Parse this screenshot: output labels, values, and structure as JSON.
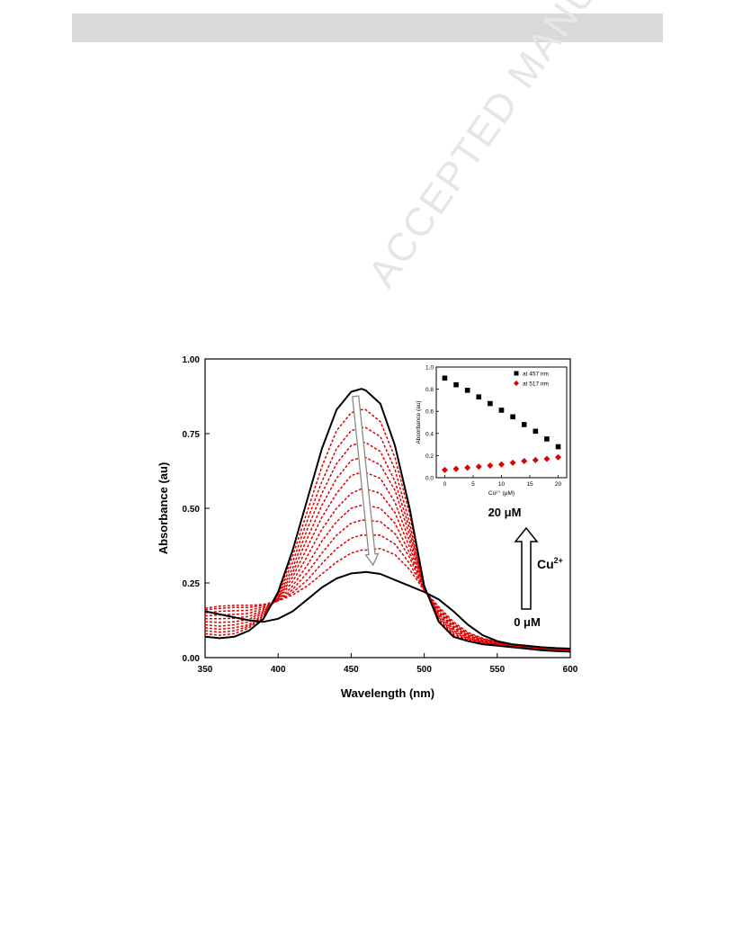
{
  "watermark": "ACCEPTED MANUSCRIPT",
  "colors": {
    "black": "#000000",
    "red": "#e00000",
    "arrow_fill": "#ffffff",
    "arrow_stroke": "#8a8a8a"
  },
  "annotations": {
    "top_label": "20 μM",
    "bottom_label": "0 μM",
    "ion_label": "Cu",
    "ion_charge": "2+"
  },
  "chart_data": [
    {
      "type": "line",
      "title": "",
      "xlabel": "Wavelength (nm)",
      "ylabel": "Absorbance (au)",
      "xlim": [
        350,
        600
      ],
      "ylim": [
        0,
        1.0
      ],
      "xticks": [
        350,
        400,
        450,
        500,
        550,
        600
      ],
      "yticks": [
        0.0,
        0.25,
        0.5,
        0.75,
        1.0
      ],
      "ytick_labels": [
        "0.00",
        "0.25",
        "0.50",
        "0.75",
        "1.00"
      ],
      "x": [
        350,
        360,
        370,
        380,
        390,
        400,
        410,
        420,
        430,
        440,
        450,
        457,
        460,
        470,
        480,
        490,
        500,
        510,
        520,
        530,
        540,
        550,
        560,
        570,
        580,
        590,
        600
      ],
      "series": [
        {
          "style": "solid-black",
          "values": [
            0.07,
            0.065,
            0.07,
            0.09,
            0.13,
            0.22,
            0.36,
            0.53,
            0.7,
            0.83,
            0.89,
            0.9,
            0.895,
            0.85,
            0.71,
            0.5,
            0.24,
            0.12,
            0.07,
            0.055,
            0.045,
            0.04,
            0.035,
            0.03,
            0.025,
            0.022,
            0.02
          ]
        },
        {
          "style": "dashed-red",
          "values": [
            0.08,
            0.075,
            0.08,
            0.1,
            0.135,
            0.215,
            0.34,
            0.49,
            0.64,
            0.76,
            0.82,
            0.83,
            0.83,
            0.79,
            0.67,
            0.48,
            0.235,
            0.125,
            0.075,
            0.058,
            0.047,
            0.042,
            0.036,
            0.031,
            0.026,
            0.023,
            0.021
          ]
        },
        {
          "style": "dashed-red",
          "values": [
            0.09,
            0.085,
            0.09,
            0.105,
            0.14,
            0.21,
            0.32,
            0.46,
            0.59,
            0.7,
            0.76,
            0.77,
            0.77,
            0.74,
            0.63,
            0.45,
            0.233,
            0.13,
            0.08,
            0.06,
            0.049,
            0.043,
            0.037,
            0.032,
            0.027,
            0.024,
            0.022
          ]
        },
        {
          "style": "dashed-red",
          "values": [
            0.1,
            0.095,
            0.1,
            0.11,
            0.145,
            0.205,
            0.3,
            0.43,
            0.55,
            0.65,
            0.71,
            0.72,
            0.72,
            0.69,
            0.59,
            0.43,
            0.232,
            0.135,
            0.085,
            0.063,
            0.051,
            0.044,
            0.038,
            0.033,
            0.028,
            0.025,
            0.023
          ]
        },
        {
          "style": "dashed-red",
          "values": [
            0.11,
            0.105,
            0.11,
            0.12,
            0.15,
            0.2,
            0.285,
            0.4,
            0.51,
            0.6,
            0.66,
            0.67,
            0.67,
            0.645,
            0.56,
            0.41,
            0.231,
            0.14,
            0.09,
            0.066,
            0.053,
            0.045,
            0.039,
            0.034,
            0.029,
            0.026,
            0.024
          ]
        },
        {
          "style": "dashed-red",
          "values": [
            0.12,
            0.118,
            0.12,
            0.128,
            0.155,
            0.198,
            0.27,
            0.37,
            0.47,
            0.55,
            0.61,
            0.62,
            0.62,
            0.6,
            0.52,
            0.39,
            0.23,
            0.145,
            0.095,
            0.069,
            0.055,
            0.047,
            0.04,
            0.035,
            0.03,
            0.027,
            0.025
          ]
        },
        {
          "style": "dashed-red",
          "values": [
            0.13,
            0.13,
            0.132,
            0.138,
            0.16,
            0.195,
            0.255,
            0.34,
            0.43,
            0.5,
            0.55,
            0.565,
            0.565,
            0.55,
            0.485,
            0.37,
            0.229,
            0.15,
            0.1,
            0.072,
            0.057,
            0.048,
            0.041,
            0.036,
            0.031,
            0.028,
            0.026
          ]
        },
        {
          "style": "dashed-red",
          "values": [
            0.14,
            0.143,
            0.145,
            0.148,
            0.165,
            0.192,
            0.24,
            0.31,
            0.39,
            0.455,
            0.5,
            0.51,
            0.51,
            0.5,
            0.45,
            0.35,
            0.228,
            0.155,
            0.105,
            0.075,
            0.059,
            0.049,
            0.042,
            0.037,
            0.032,
            0.029,
            0.027
          ]
        },
        {
          "style": "dashed-red",
          "values": [
            0.15,
            0.155,
            0.157,
            0.158,
            0.17,
            0.19,
            0.228,
            0.285,
            0.35,
            0.41,
            0.45,
            0.46,
            0.46,
            0.455,
            0.415,
            0.335,
            0.227,
            0.16,
            0.11,
            0.078,
            0.061,
            0.05,
            0.043,
            0.038,
            0.033,
            0.03,
            0.028
          ]
        },
        {
          "style": "dashed-red",
          "values": [
            0.16,
            0.165,
            0.168,
            0.168,
            0.175,
            0.19,
            0.218,
            0.26,
            0.315,
            0.365,
            0.4,
            0.41,
            0.41,
            0.41,
            0.38,
            0.315,
            0.226,
            0.165,
            0.115,
            0.081,
            0.063,
            0.051,
            0.044,
            0.039,
            0.034,
            0.031,
            0.029
          ]
        },
        {
          "style": "dashed-red",
          "values": [
            0.165,
            0.172,
            0.175,
            0.175,
            0.178,
            0.19,
            0.21,
            0.24,
            0.28,
            0.32,
            0.35,
            0.36,
            0.36,
            0.365,
            0.345,
            0.295,
            0.225,
            0.17,
            0.12,
            0.084,
            0.065,
            0.052,
            0.045,
            0.04,
            0.035,
            0.032,
            0.03
          ]
        },
        {
          "style": "solid-black",
          "values": [
            0.155,
            0.145,
            0.135,
            0.125,
            0.12,
            0.13,
            0.155,
            0.195,
            0.235,
            0.265,
            0.282,
            0.285,
            0.287,
            0.28,
            0.26,
            0.24,
            0.22,
            0.195,
            0.155,
            0.11,
            0.075,
            0.055,
            0.045,
            0.04,
            0.035,
            0.032,
            0.03
          ]
        }
      ]
    },
    {
      "type": "scatter",
      "title": "",
      "xlabel": "Cu²⁺ (μM)",
      "ylabel": "Absorbance (au)",
      "xlim": [
        -1.5,
        21.5
      ],
      "ylim": [
        0,
        1.0
      ],
      "xticks": [
        0,
        5,
        10,
        15,
        20
      ],
      "yticks": [
        0.0,
        0.2,
        0.4,
        0.6,
        0.8,
        1.0
      ],
      "ytick_labels": [
        "0.0",
        "0.2",
        "0.4",
        "0.6",
        "0.8",
        "1.0"
      ],
      "legend": "top-right",
      "x": [
        0,
        2,
        4,
        6,
        8,
        10,
        12,
        14,
        16,
        18,
        20
      ],
      "series": [
        {
          "name": "at 457 nm",
          "marker": "square",
          "color": "#000000",
          "values": [
            0.9,
            0.84,
            0.79,
            0.73,
            0.67,
            0.61,
            0.55,
            0.48,
            0.42,
            0.35,
            0.28
          ]
        },
        {
          "name": "at 517 nm",
          "marker": "diamond",
          "color": "#e00000",
          "values": [
            0.07,
            0.08,
            0.09,
            0.1,
            0.11,
            0.12,
            0.135,
            0.15,
            0.16,
            0.17,
            0.185
          ]
        }
      ]
    }
  ]
}
